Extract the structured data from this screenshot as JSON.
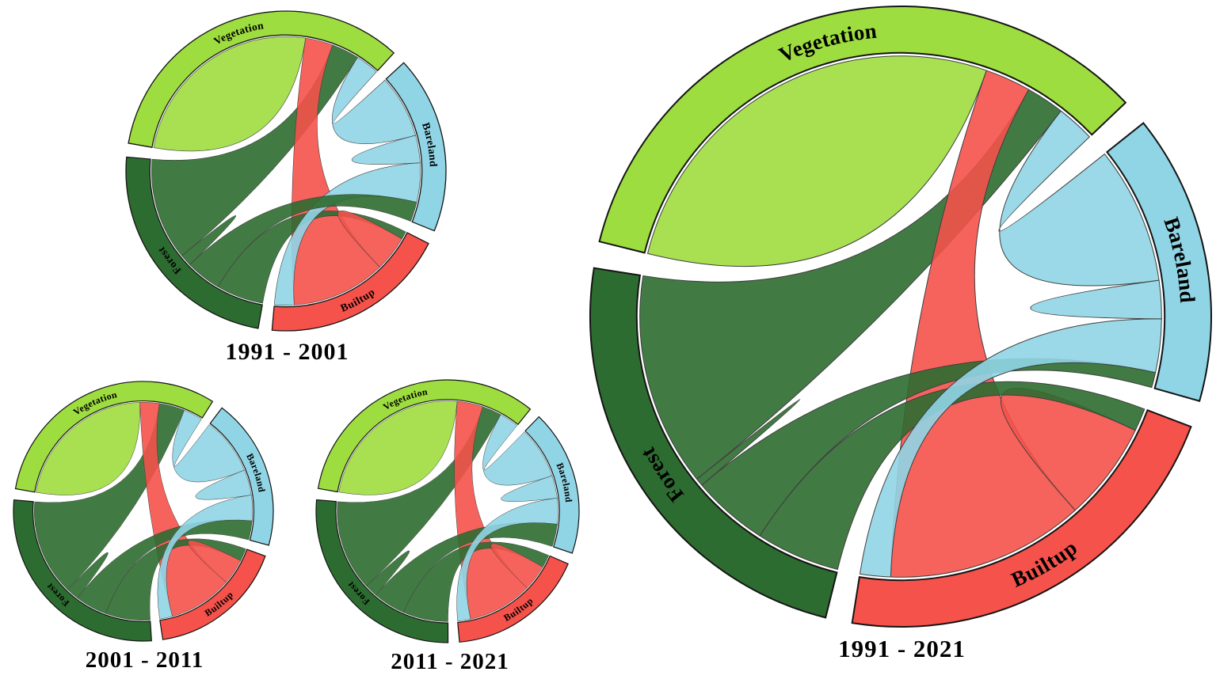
{
  "figure": {
    "background": "#ffffff",
    "categories": [
      "Vegetation",
      "Bareland",
      "Builtup",
      "Forest"
    ],
    "palette": {
      "Vegetation": "#9edd3f",
      "Bareland": "#90d5e5",
      "Builtup": "#f4524a",
      "Forest": "#2d6c30"
    }
  },
  "chart_data": [
    {
      "type": "chord",
      "title": "1991 - 2001",
      "groups": [
        {
          "name": "Vegetation",
          "color": "#9edd3f"
        },
        {
          "name": "Bareland",
          "color": "#90d5e5"
        },
        {
          "name": "Builtup",
          "color": "#f4524a"
        },
        {
          "name": "Forest",
          "color": "#2d6c30"
        }
      ],
      "flows": [
        {
          "from": "Vegetation",
          "to": "Vegetation",
          "value": 26
        },
        {
          "from": "Vegetation",
          "to": "Bareland",
          "value": 3
        },
        {
          "from": "Vegetation",
          "to": "Builtup",
          "value": 3.5
        },
        {
          "from": "Vegetation",
          "to": "Forest",
          "value": 3.5
        },
        {
          "from": "Bareland",
          "to": "Vegetation",
          "value": 8
        },
        {
          "from": "Bareland",
          "to": "Bareland",
          "value": 3.5
        },
        {
          "from": "Bareland",
          "to": "Builtup",
          "value": 5
        },
        {
          "from": "Bareland",
          "to": "Forest",
          "value": 2.5
        },
        {
          "from": "Builtup",
          "to": "Vegetation",
          "value": 12
        },
        {
          "from": "Builtup",
          "to": "Bareland",
          "value": 2.5
        },
        {
          "from": "Builtup",
          "to": "Builtup",
          "value": 4.5
        },
        {
          "from": "Builtup",
          "to": "Forest",
          "value": 1
        },
        {
          "from": "Forest",
          "to": "Vegetation",
          "value": 13
        },
        {
          "from": "Forest",
          "to": "Bareland",
          "value": 4.5
        },
        {
          "from": "Forest",
          "to": "Builtup",
          "value": 6
        },
        {
          "from": "Forest",
          "to": "Forest",
          "value": 1.5
        }
      ],
      "start_deg": -80,
      "gap_deg": 5,
      "suborder": {
        "Vegetation": [
          "Vegetation",
          "Builtup",
          "Forest",
          "Bareland"
        ],
        "Bareland": [
          "Vegetation",
          "Bareland",
          "Builtup",
          "Forest"
        ],
        "Builtup": [
          "Forest",
          "Builtup",
          "Vegetation",
          "Bareland"
        ],
        "Forest": [
          "Builtup",
          "Bareland",
          "Forest",
          "Vegetation"
        ]
      }
    },
    {
      "type": "chord",
      "title": "2001 - 2011",
      "groups": [
        {
          "name": "Vegetation",
          "color": "#9edd3f"
        },
        {
          "name": "Bareland",
          "color": "#90d5e5"
        },
        {
          "name": "Builtup",
          "color": "#f4524a"
        },
        {
          "name": "Forest",
          "color": "#2d6c30"
        }
      ],
      "flows": [
        {
          "from": "Vegetation",
          "to": "Vegetation",
          "value": 23
        },
        {
          "from": "Vegetation",
          "to": "Bareland",
          "value": 3
        },
        {
          "from": "Vegetation",
          "to": "Builtup",
          "value": 3
        },
        {
          "from": "Vegetation",
          "to": "Forest",
          "value": 4
        },
        {
          "from": "Bareland",
          "to": "Vegetation",
          "value": 9
        },
        {
          "from": "Bareland",
          "to": "Bareland",
          "value": 4
        },
        {
          "from": "Bareland",
          "to": "Builtup",
          "value": 4
        },
        {
          "from": "Bareland",
          "to": "Forest",
          "value": 3
        },
        {
          "from": "Builtup",
          "to": "Vegetation",
          "value": 10
        },
        {
          "from": "Builtup",
          "to": "Bareland",
          "value": 2
        },
        {
          "from": "Builtup",
          "to": "Builtup",
          "value": 4
        },
        {
          "from": "Builtup",
          "to": "Forest",
          "value": 2
        },
        {
          "from": "Forest",
          "to": "Vegetation",
          "value": 15
        },
        {
          "from": "Forest",
          "to": "Bareland",
          "value": 5
        },
        {
          "from": "Forest",
          "to": "Builtup",
          "value": 7
        },
        {
          "from": "Forest",
          "to": "Forest",
          "value": 2
        }
      ],
      "start_deg": -80,
      "gap_deg": 5,
      "suborder": {
        "Vegetation": [
          "Vegetation",
          "Builtup",
          "Forest",
          "Bareland"
        ],
        "Bareland": [
          "Vegetation",
          "Bareland",
          "Builtup",
          "Forest"
        ],
        "Builtup": [
          "Forest",
          "Builtup",
          "Vegetation",
          "Bareland"
        ],
        "Forest": [
          "Builtup",
          "Bareland",
          "Forest",
          "Vegetation"
        ]
      }
    },
    {
      "type": "chord",
      "title": "2011 - 2021",
      "groups": [
        {
          "name": "Vegetation",
          "color": "#9edd3f"
        },
        {
          "name": "Bareland",
          "color": "#90d5e5"
        },
        {
          "name": "Builtup",
          "color": "#f4524a"
        },
        {
          "name": "Forest",
          "color": "#2d6c30"
        }
      ],
      "flows": [
        {
          "from": "Vegetation",
          "to": "Vegetation",
          "value": 25
        },
        {
          "from": "Vegetation",
          "to": "Bareland",
          "value": 3
        },
        {
          "from": "Vegetation",
          "to": "Builtup",
          "value": 4
        },
        {
          "from": "Vegetation",
          "to": "Forest",
          "value": 3
        },
        {
          "from": "Bareland",
          "to": "Vegetation",
          "value": 8
        },
        {
          "from": "Bareland",
          "to": "Bareland",
          "value": 3.5
        },
        {
          "from": "Bareland",
          "to": "Builtup",
          "value": 4
        },
        {
          "from": "Bareland",
          "to": "Forest",
          "value": 3.5
        },
        {
          "from": "Builtup",
          "to": "Vegetation",
          "value": 10
        },
        {
          "from": "Builtup",
          "to": "Bareland",
          "value": 2
        },
        {
          "from": "Builtup",
          "to": "Builtup",
          "value": 4
        },
        {
          "from": "Builtup",
          "to": "Forest",
          "value": 2
        },
        {
          "from": "Forest",
          "to": "Vegetation",
          "value": 14
        },
        {
          "from": "Forest",
          "to": "Bareland",
          "value": 5
        },
        {
          "from": "Forest",
          "to": "Builtup",
          "value": 7
        },
        {
          "from": "Forest",
          "to": "Forest",
          "value": 2
        }
      ],
      "start_deg": -80,
      "gap_deg": 5,
      "suborder": {
        "Vegetation": [
          "Vegetation",
          "Builtup",
          "Forest",
          "Bareland"
        ],
        "Bareland": [
          "Vegetation",
          "Bareland",
          "Builtup",
          "Forest"
        ],
        "Builtup": [
          "Forest",
          "Builtup",
          "Vegetation",
          "Bareland"
        ],
        "Forest": [
          "Builtup",
          "Bareland",
          "Forest",
          "Vegetation"
        ]
      }
    },
    {
      "type": "chord",
      "title": "1991 - 2021",
      "groups": [
        {
          "name": "Vegetation",
          "color": "#9edd3f"
        },
        {
          "name": "Bareland",
          "color": "#90d5e5"
        },
        {
          "name": "Builtup",
          "color": "#f4524a"
        },
        {
          "name": "Forest",
          "color": "#2d6c30"
        }
      ],
      "flows": [
        {
          "from": "Vegetation",
          "to": "Vegetation",
          "value": 28
        },
        {
          "from": "Vegetation",
          "to": "Bareland",
          "value": 2.5
        },
        {
          "from": "Vegetation",
          "to": "Builtup",
          "value": 3
        },
        {
          "from": "Vegetation",
          "to": "Forest",
          "value": 2.5
        },
        {
          "from": "Bareland",
          "to": "Vegetation",
          "value": 9
        },
        {
          "from": "Bareland",
          "to": "Bareland",
          "value": 2.5
        },
        {
          "from": "Bareland",
          "to": "Builtup",
          "value": 3.5
        },
        {
          "from": "Bareland",
          "to": "Forest",
          "value": 1
        },
        {
          "from": "Builtup",
          "to": "Vegetation",
          "value": 13
        },
        {
          "from": "Builtup",
          "to": "Bareland",
          "value": 2
        },
        {
          "from": "Builtup",
          "to": "Builtup",
          "value": 6.5
        },
        {
          "from": "Builtup",
          "to": "Forest",
          "value": 1.5
        },
        {
          "from": "Forest",
          "to": "Vegetation",
          "value": 14
        },
        {
          "from": "Forest",
          "to": "Bareland",
          "value": 5
        },
        {
          "from": "Forest",
          "to": "Builtup",
          "value": 5.5
        },
        {
          "from": "Forest",
          "to": "Forest",
          "value": 0.5
        }
      ],
      "start_deg": -76,
      "gap_deg": 5,
      "suborder": {
        "Vegetation": [
          "Vegetation",
          "Builtup",
          "Forest",
          "Bareland"
        ],
        "Bareland": [
          "Vegetation",
          "Bareland",
          "Builtup",
          "Forest"
        ],
        "Builtup": [
          "Forest",
          "Builtup",
          "Vegetation",
          "Bareland"
        ],
        "Forest": [
          "Builtup",
          "Bareland",
          "Forest",
          "Vegetation"
        ]
      }
    }
  ]
}
